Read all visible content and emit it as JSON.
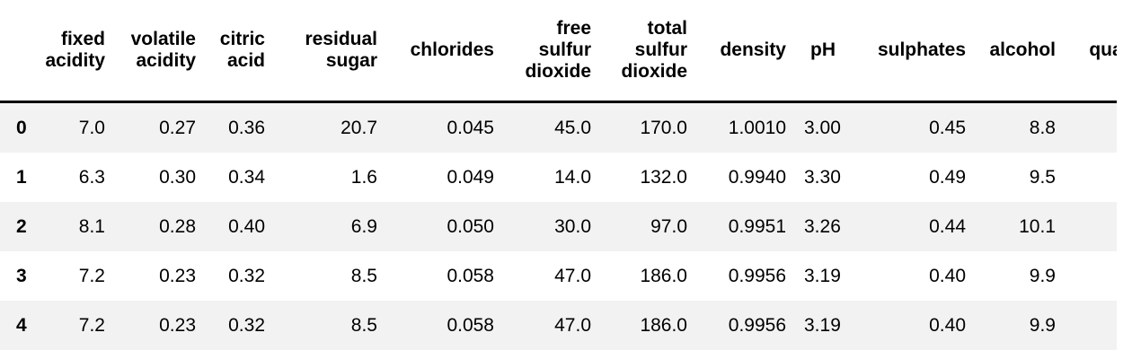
{
  "table": {
    "kind": "pandas-dataframe-output",
    "index_header": "",
    "columns": [
      {
        "label": "fixed acidity"
      },
      {
        "label": "volatile acidity"
      },
      {
        "label": "citric acid"
      },
      {
        "label": "residual sugar"
      },
      {
        "label": "chlorides"
      },
      {
        "label": "free sulfur dioxide"
      },
      {
        "label": "total sulfur dioxide"
      },
      {
        "label": "density"
      },
      {
        "label": "pH"
      },
      {
        "label": "sulphates"
      },
      {
        "label": "alcohol"
      },
      {
        "label": "quality",
        "clipped": true
      }
    ],
    "rows": [
      {
        "index": "0",
        "values": [
          "7.0",
          "0.27",
          "0.36",
          "20.7",
          "0.045",
          "45.0",
          "170.0",
          "1.0010",
          "3.00",
          "0.45",
          "8.8",
          ""
        ]
      },
      {
        "index": "1",
        "values": [
          "6.3",
          "0.30",
          "0.34",
          "1.6",
          "0.049",
          "14.0",
          "132.0",
          "0.9940",
          "3.30",
          "0.49",
          "9.5",
          ""
        ]
      },
      {
        "index": "2",
        "values": [
          "8.1",
          "0.28",
          "0.40",
          "6.9",
          "0.050",
          "30.0",
          "97.0",
          "0.9951",
          "3.26",
          "0.44",
          "10.1",
          ""
        ]
      },
      {
        "index": "3",
        "values": [
          "7.2",
          "0.23",
          "0.32",
          "8.5",
          "0.058",
          "47.0",
          "186.0",
          "0.9956",
          "3.19",
          "0.40",
          "9.9",
          ""
        ]
      },
      {
        "index": "4",
        "values": [
          "7.2",
          "0.23",
          "0.32",
          "8.5",
          "0.058",
          "47.0",
          "186.0",
          "0.9956",
          "3.19",
          "0.40",
          "9.9",
          ""
        ]
      }
    ]
  },
  "colors": {
    "row_stripe": "#f2f2f2",
    "row_plain": "#ffffff",
    "header_border": "#000000",
    "text": "#000000",
    "background": "#ffffff"
  }
}
